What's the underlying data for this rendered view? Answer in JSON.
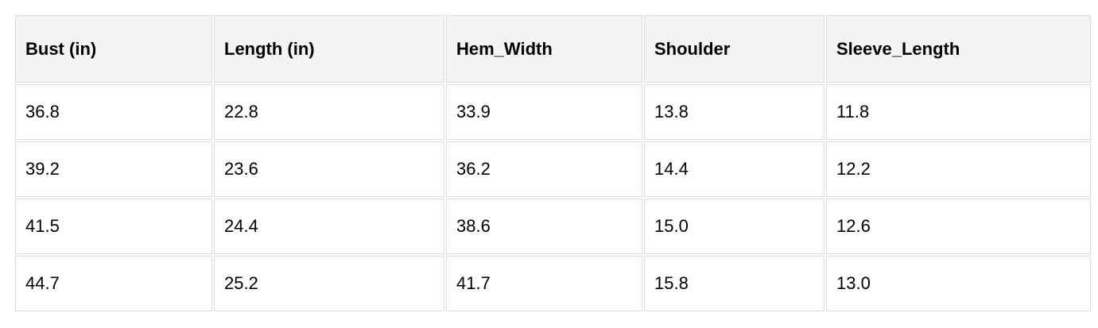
{
  "table": {
    "headers": [
      "Bust (in)",
      "Length (in)",
      "Hem_Width",
      "Shoulder",
      "Sleeve_Length"
    ],
    "rows": [
      [
        "36.8",
        "22.8",
        "33.9",
        "13.8",
        "11.8"
      ],
      [
        "39.2",
        "23.6",
        "36.2",
        "14.4",
        "12.2"
      ],
      [
        "41.5",
        "24.4",
        "38.6",
        "15.0",
        "12.6"
      ],
      [
        "44.7",
        "25.2",
        "41.7",
        "15.8",
        "13.0"
      ]
    ]
  }
}
